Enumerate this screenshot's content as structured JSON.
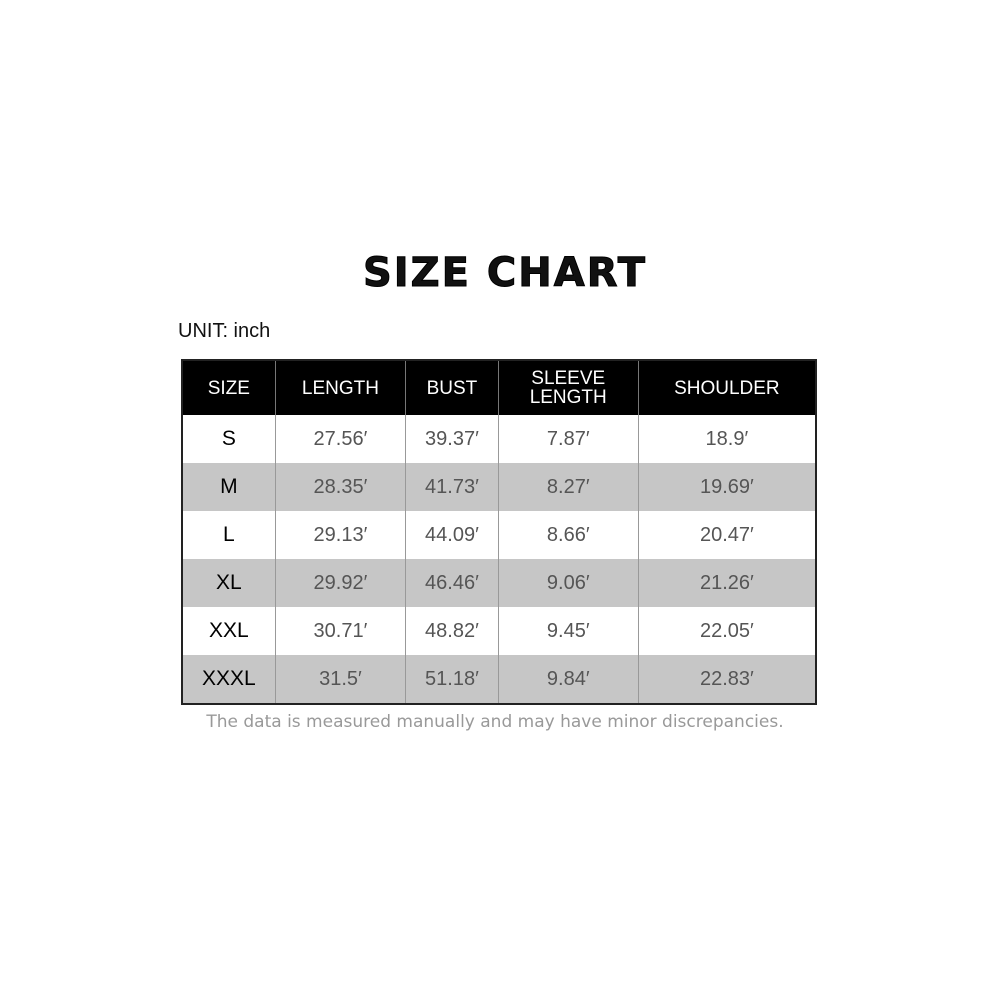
{
  "title": "SIZE CHART",
  "unit_label": "UNIT: inch",
  "table": {
    "headers": [
      "SIZE",
      "LENGTH",
      "BUST",
      "SLEEVE LENGTH",
      "SHOULDER"
    ],
    "rows": [
      [
        "S",
        "27.56′",
        "39.37′",
        "7.87′",
        "18.9′"
      ],
      [
        "M",
        "28.35′",
        "41.73′",
        "8.27′",
        "19.69′"
      ],
      [
        "L",
        "29.13′",
        "44.09′",
        "8.66′",
        "20.47′"
      ],
      [
        "XL",
        "29.92′",
        "46.46′",
        "9.06′",
        "21.26′"
      ],
      [
        "XXL",
        "30.71′",
        "48.82′",
        "9.45′",
        "22.05′"
      ],
      [
        "XXXL",
        "31.5′",
        "51.18′",
        "9.84′",
        "22.83′"
      ]
    ]
  },
  "note": "The data is measured manually and may have minor discrepancies.",
  "colors": {
    "header_bg": "#000000",
    "alt_row_bg": "#c6c6c6",
    "value_text": "#555555",
    "note_text": "#999999"
  }
}
